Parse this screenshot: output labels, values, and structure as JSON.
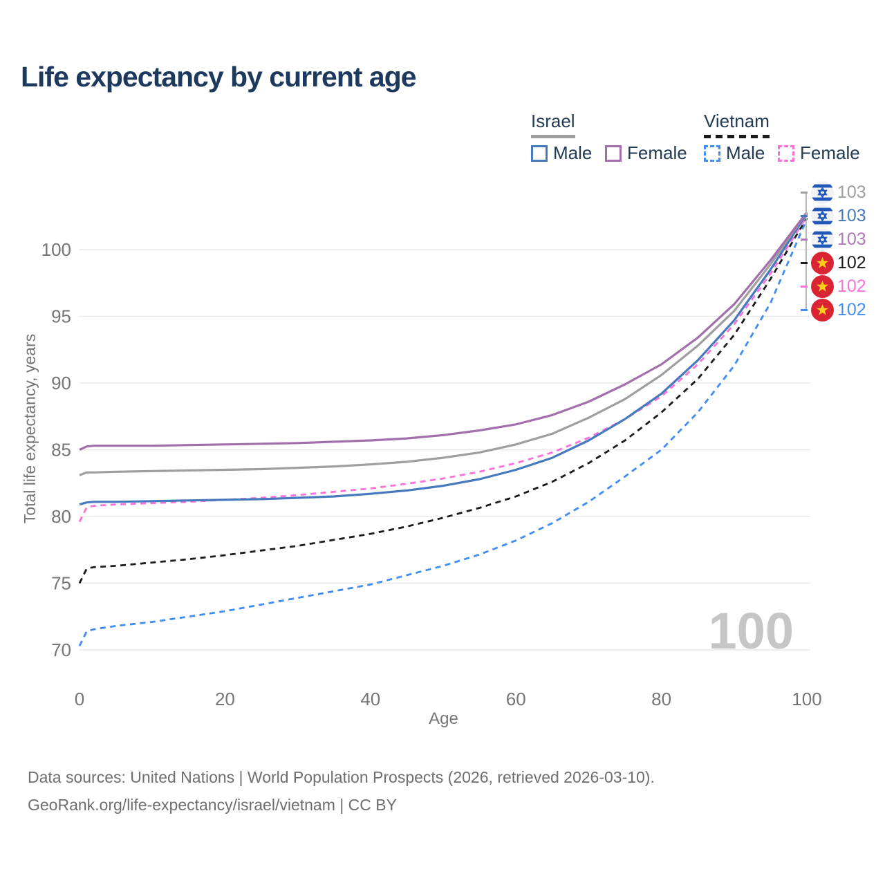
{
  "title": "Life expectancy by current age",
  "legend": {
    "israel": {
      "title": "Israel",
      "male": "Male",
      "female": "Female"
    },
    "vietnam": {
      "title": "Vietnam",
      "male": "Male",
      "female": "Female"
    }
  },
  "footer": {
    "line1": "Data sources: United Nations | World Population Prospects (2026, retrieved 2026-03-10).",
    "line2": "GeoRank.org/life-expectancy/israel/vietnam | CC BY"
  },
  "colors": {
    "title_text": "#1d3a5e",
    "legend_text": "#233a54",
    "axis_text": "#757575",
    "grid": "#e8e8e8",
    "watermark": "#c6c6c6",
    "israel_flag_blue": "#2057b8",
    "vietnam_flag_red": "#da2433",
    "vietnam_flag_yellow": "#ffce1f"
  },
  "chart_data": {
    "type": "line",
    "title": "Life expectancy by current age",
    "xlabel": "Age",
    "ylabel": "Total life expectancy, years",
    "x_ticks": [
      0,
      20,
      40,
      60,
      80,
      100
    ],
    "y_ticks": [
      70,
      75,
      80,
      85,
      90,
      95,
      100
    ],
    "xlim": [
      0,
      100
    ],
    "ylim": [
      68.5,
      104.5
    ],
    "grid": "horizontal",
    "legend_position": "top-right",
    "watermark": "100",
    "ages": [
      0,
      1,
      2,
      5,
      10,
      15,
      20,
      25,
      30,
      35,
      40,
      45,
      50,
      55,
      60,
      65,
      70,
      75,
      80,
      85,
      90,
      95,
      100
    ],
    "series": [
      {
        "id": "vietnam-male",
        "name": "Vietnam Male",
        "country": "Vietnam",
        "sex": "male",
        "color": "#3f8cf4",
        "dash": "dashed",
        "values": [
          70.3,
          71.4,
          71.55,
          71.8,
          72.1,
          72.5,
          72.9,
          73.4,
          73.9,
          74.4,
          74.9,
          75.6,
          76.3,
          77.15,
          78.2,
          79.5,
          81.1,
          83.0,
          85.0,
          87.8,
          91.3,
          96.0,
          102.3
        ]
      },
      {
        "id": "vietnam-total",
        "name": "Vietnam",
        "country": "Vietnam",
        "sex": "both",
        "color": "#1a1a1a",
        "dash": "dashed",
        "values": [
          75.0,
          76.1,
          76.2,
          76.3,
          76.55,
          76.8,
          77.1,
          77.45,
          77.8,
          78.25,
          78.7,
          79.25,
          79.9,
          80.65,
          81.5,
          82.6,
          84.0,
          85.7,
          87.8,
          90.3,
          93.6,
          97.8,
          102.4
        ]
      },
      {
        "id": "vietnam-female",
        "name": "Vietnam Female",
        "country": "Vietnam",
        "sex": "female",
        "color": "#fb71d9",
        "dash": "dashed",
        "values": [
          79.6,
          80.7,
          80.8,
          80.9,
          81.0,
          81.1,
          81.25,
          81.4,
          81.6,
          81.85,
          82.1,
          82.45,
          82.85,
          83.35,
          84.0,
          84.8,
          85.9,
          87.3,
          89.0,
          91.4,
          94.4,
          98.2,
          102.5
        ]
      },
      {
        "id": "israel-male",
        "name": "Israel Male",
        "country": "Israel",
        "sex": "male",
        "color": "#4679bd",
        "dash": "solid",
        "values": [
          80.9,
          81.05,
          81.1,
          81.1,
          81.15,
          81.2,
          81.25,
          81.3,
          81.4,
          81.5,
          81.7,
          81.95,
          82.3,
          82.8,
          83.5,
          84.4,
          85.7,
          87.3,
          89.2,
          91.7,
          94.7,
          98.5,
          102.7
        ]
      },
      {
        "id": "israel-total",
        "name": "Israel",
        "country": "Israel",
        "sex": "both",
        "color": "#9e9e9e",
        "dash": "solid",
        "values": [
          83.1,
          83.3,
          83.3,
          83.35,
          83.4,
          83.45,
          83.5,
          83.55,
          83.65,
          83.75,
          83.9,
          84.1,
          84.4,
          84.8,
          85.4,
          86.2,
          87.4,
          88.8,
          90.6,
          92.8,
          95.4,
          98.9,
          102.8
        ]
      },
      {
        "id": "israel-female",
        "name": "Israel Female",
        "country": "Israel",
        "sex": "female",
        "color": "#a26fac",
        "dash": "solid",
        "values": [
          85.0,
          85.25,
          85.3,
          85.3,
          85.3,
          85.35,
          85.4,
          85.45,
          85.5,
          85.6,
          85.7,
          85.85,
          86.1,
          86.45,
          86.9,
          87.6,
          88.6,
          89.9,
          91.4,
          93.4,
          95.9,
          99.2,
          102.8
        ]
      }
    ],
    "end_labels": [
      {
        "flag": "israel",
        "series": "israel-total",
        "value": "103",
        "color": "#9e9e9e"
      },
      {
        "flag": "israel",
        "series": "israel-male",
        "value": "103",
        "color": "#4679bd"
      },
      {
        "flag": "israel",
        "series": "israel-female",
        "value": "103",
        "color": "#b078b8"
      },
      {
        "flag": "vietnam",
        "series": "vietnam-total",
        "value": "102",
        "color": "#1a1a1a"
      },
      {
        "flag": "vietnam",
        "series": "vietnam-female",
        "value": "102",
        "color": "#fb71d9"
      },
      {
        "flag": "vietnam",
        "series": "vietnam-male",
        "value": "102",
        "color": "#418df2"
      }
    ]
  }
}
